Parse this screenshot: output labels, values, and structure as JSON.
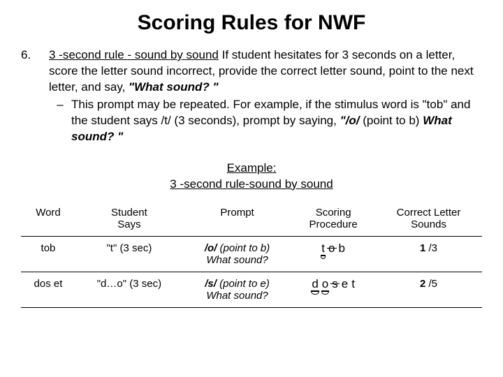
{
  "title": "Scoring Rules for NWF",
  "list_number": "6.",
  "rule_label": "3 -second rule - sound by sound",
  "rule_text_after": " If student hesitates for 3 seconds on a letter, score the letter sound incorrect, provide the correct letter sound, point to the next letter, and say, ",
  "rule_quote": "\"What sound? \"",
  "dash": "–",
  "sub_text_a": "This prompt may be repeated. For example, if the stimulus word is \"tob\" and the student says /t/ (3 seconds), prompt by saying, ",
  "sub_quote": "\"/o/ ",
  "sub_text_b": "(point to b)",
  "sub_quote2": " What sound? \"",
  "example_line1": "Example:",
  "example_line2": "3 -second rule-sound by sound",
  "table": {
    "headers": {
      "word": "Word",
      "says_l1": "Student",
      "says_l2": "Says",
      "prompt": "Prompt",
      "scoring_l1": "Scoring",
      "scoring_l2": "Procedure",
      "cls_l1": "Correct Letter",
      "cls_l2": "Sounds"
    },
    "rows": [
      {
        "word": "tob",
        "says": "\"t\" (3 sec)",
        "prompt_bold": "/o/",
        "prompt_rest": " (point to b)",
        "prompt_l2": "What sound?",
        "sp_letters": [
          {
            "ch": "t",
            "under": true,
            "arc": true,
            "strike": false
          },
          {
            "ch": "o",
            "under": false,
            "arc": false,
            "strike": true
          },
          {
            "ch": "b",
            "under": false,
            "arc": false,
            "strike": false
          }
        ],
        "cls_bold": "1",
        "cls_rest": " /3"
      },
      {
        "word": "dos et",
        "says": "\"d…o\" (3 sec)",
        "prompt_bold": "/s/",
        "prompt_rest": " (point to e)",
        "prompt_l2": "What sound?",
        "sp_letters": [
          {
            "ch": "d",
            "under": true,
            "arc": true,
            "strike": false
          },
          {
            "ch": "o",
            "under": true,
            "arc": true,
            "strike": false
          },
          {
            "ch": "s",
            "under": false,
            "arc": false,
            "strike": true
          },
          {
            "ch": "e",
            "under": false,
            "arc": false,
            "strike": false
          },
          {
            "ch": "t",
            "under": false,
            "arc": false,
            "strike": false
          }
        ],
        "cls_bold": "2",
        "cls_rest": " /5"
      }
    ]
  },
  "colors": {
    "background": "#ffffff",
    "text": "#000000",
    "rule": "#000000"
  }
}
